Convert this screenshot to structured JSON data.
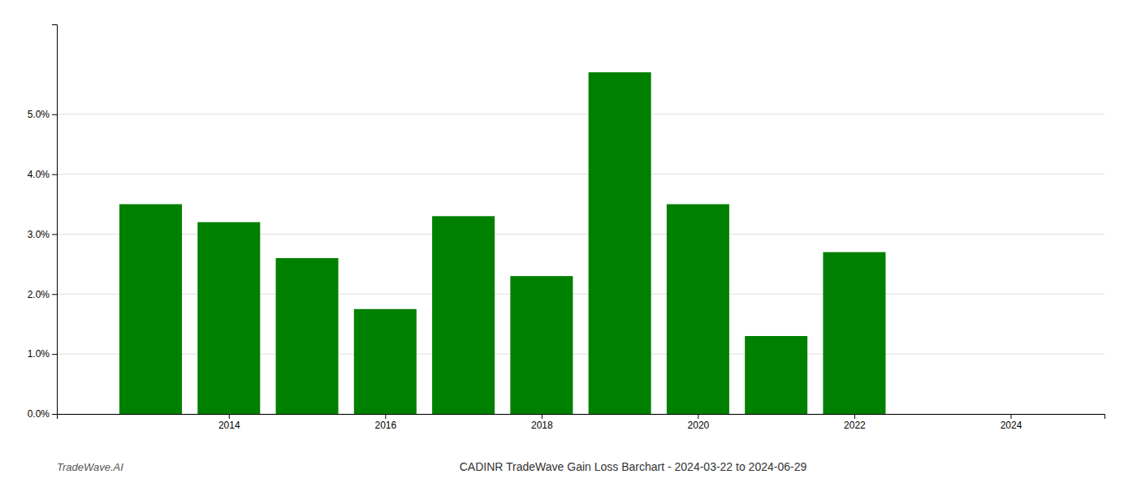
{
  "chart_data": {
    "type": "bar",
    "title": "CADINR TradeWave Gain Loss Barchart - 2024-03-22 to 2024-06-29",
    "annotations": [
      "TradeWave.AI"
    ],
    "x": [
      2013,
      2014,
      2015,
      2016,
      2017,
      2018,
      2019,
      2020,
      2021,
      2022,
      2023
    ],
    "values": [
      0.035,
      0.032,
      0.026,
      0.0175,
      0.033,
      0.023,
      0.057,
      0.035,
      0.013,
      0.027,
      0.0
    ],
    "color": "#008000",
    "xlim": [
      2011.8,
      2025.2
    ],
    "xticks": [
      2014,
      2016,
      2018,
      2020,
      2022,
      2024
    ],
    "ylim": [
      0,
      0.065
    ],
    "yticks": [
      {
        "value": 0.0,
        "label": "0.0%"
      },
      {
        "value": 0.01,
        "label": "1.0%"
      },
      {
        "value": 0.02,
        "label": "2.0%"
      },
      {
        "value": 0.03,
        "label": "3.0%"
      },
      {
        "value": 0.04,
        "label": "4.0%"
      },
      {
        "value": 0.05,
        "label": "5.0%"
      }
    ],
    "grid": true
  }
}
